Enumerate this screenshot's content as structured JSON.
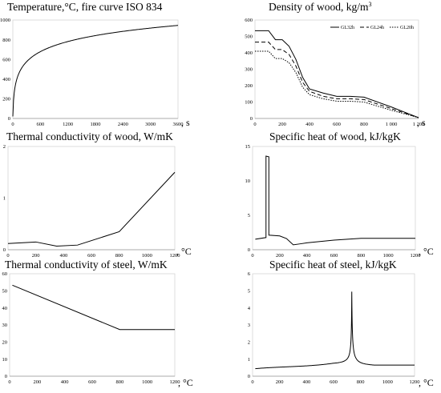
{
  "chart_data": [
    {
      "type": "line",
      "title": "Temperature,°C, fire curve ISO 834",
      "x_unit": ", s",
      "xlim": [
        0,
        3600
      ],
      "ylim": [
        0,
        1000
      ],
      "x_ticks": [
        "0",
        "600",
        "1200",
        "1800",
        "2400",
        "3000",
        "3600"
      ],
      "y_ticks": [
        "0",
        "200",
        "400",
        "600",
        "800",
        "1000"
      ],
      "formula": "iso834",
      "series": [
        {
          "name": "",
          "color": "#000000",
          "dash": "",
          "x": [],
          "y": []
        }
      ]
    },
    {
      "type": "line",
      "title": "Density of wood, kg/m",
      "title_sup": "3",
      "x_unit": ", s",
      "xlim": [
        0,
        1200
      ],
      "ylim": [
        0,
        600
      ],
      "x_ticks": [
        "0",
        "200",
        "400",
        "600",
        "800",
        "1 000",
        "1 200"
      ],
      "y_ticks": [
        "0",
        "100",
        "200",
        "300",
        "400",
        "500",
        "600"
      ],
      "legend_position": "top-right",
      "series": [
        {
          "name": "GL32h",
          "color": "#000000",
          "dash": "",
          "x": [
            0,
            100,
            150,
            200,
            250,
            300,
            350,
            400,
            500,
            600,
            700,
            800,
            1000,
            1200
          ],
          "y": [
            535,
            535,
            480,
            480,
            440,
            360,
            250,
            180,
            155,
            135,
            135,
            130,
            70,
            5
          ]
        },
        {
          "name": "GL24h",
          "color": "#000000",
          "dash": "5,3",
          "x": [
            0,
            100,
            150,
            200,
            250,
            300,
            350,
            400,
            500,
            600,
            700,
            800,
            1000,
            1200
          ],
          "y": [
            465,
            465,
            420,
            420,
            390,
            320,
            220,
            165,
            135,
            120,
            120,
            115,
            60,
            5
          ]
        },
        {
          "name": "GL20h",
          "color": "#000000",
          "dash": "1.5,1.5",
          "x": [
            0,
            100,
            150,
            200,
            250,
            300,
            350,
            400,
            500,
            600,
            700,
            800,
            1000,
            1200
          ],
          "y": [
            410,
            410,
            365,
            365,
            340,
            280,
            190,
            145,
            120,
            105,
            105,
            100,
            50,
            5
          ]
        }
      ]
    },
    {
      "type": "line",
      "title": "Thermal conductivity of wood, W/mK",
      "x_unit": ", °C",
      "xlim": [
        0,
        1200
      ],
      "ylim": [
        0,
        2
      ],
      "x_ticks": [
        "0",
        "200",
        "400",
        "600",
        "800",
        "1000",
        "1200"
      ],
      "y_ticks": [
        "0",
        "1",
        "2"
      ],
      "series": [
        {
          "name": "",
          "color": "#000000",
          "dash": "",
          "x": [
            0,
            200,
            350,
            500,
            800,
            1200
          ],
          "y": [
            0.12,
            0.15,
            0.07,
            0.09,
            0.35,
            1.5
          ]
        }
      ]
    },
    {
      "type": "line",
      "title": "Specific heat of wood, kJ/kgK",
      "x_unit": ", °C",
      "xlim": [
        0,
        1200
      ],
      "ylim": [
        0,
        15
      ],
      "x_ticks": [
        "0",
        "200",
        "400",
        "600",
        "800",
        "1000",
        "1200"
      ],
      "y_ticks": [
        "0",
        "5",
        "10",
        "15"
      ],
      "series": [
        {
          "name": "",
          "color": "#000000",
          "dash": "",
          "x": [
            20,
            99,
            99,
            120,
            120,
            200,
            250,
            300,
            350,
            400,
            600,
            800,
            1200
          ],
          "y": [
            1.53,
            1.77,
            13.6,
            13.5,
            2.12,
            2.0,
            1.62,
            0.71,
            0.85,
            1.0,
            1.4,
            1.65,
            1.65
          ]
        }
      ]
    },
    {
      "type": "line",
      "title": "Thermal conductivity of steel, W/mK",
      "x_unit": ", °C",
      "xlim": [
        0,
        1200
      ],
      "ylim": [
        0,
        60
      ],
      "x_ticks": [
        "0",
        "200",
        "400",
        "600",
        "800",
        "1000",
        "1200"
      ],
      "y_ticks": [
        "0",
        "10",
        "20",
        "30",
        "40",
        "50",
        "60"
      ],
      "series": [
        {
          "name": "",
          "color": "#000000",
          "dash": "",
          "x": [
            20,
            800,
            1200
          ],
          "y": [
            53.3,
            27.3,
            27.3
          ]
        }
      ]
    },
    {
      "type": "line",
      "title": "Specific heat of steel, kJ/kgK",
      "x_unit": ", °C",
      "xlim": [
        0,
        1200
      ],
      "ylim": [
        0,
        6
      ],
      "x_ticks": [
        "0",
        "200",
        "400",
        "600",
        "800",
        "1000",
        "1200"
      ],
      "y_ticks": [
        "0",
        "1",
        "2",
        "3",
        "4",
        "5",
        "6"
      ],
      "formula": "steel_cp",
      "series": [
        {
          "name": "",
          "color": "#000000",
          "dash": "",
          "x": [],
          "y": []
        }
      ]
    }
  ]
}
